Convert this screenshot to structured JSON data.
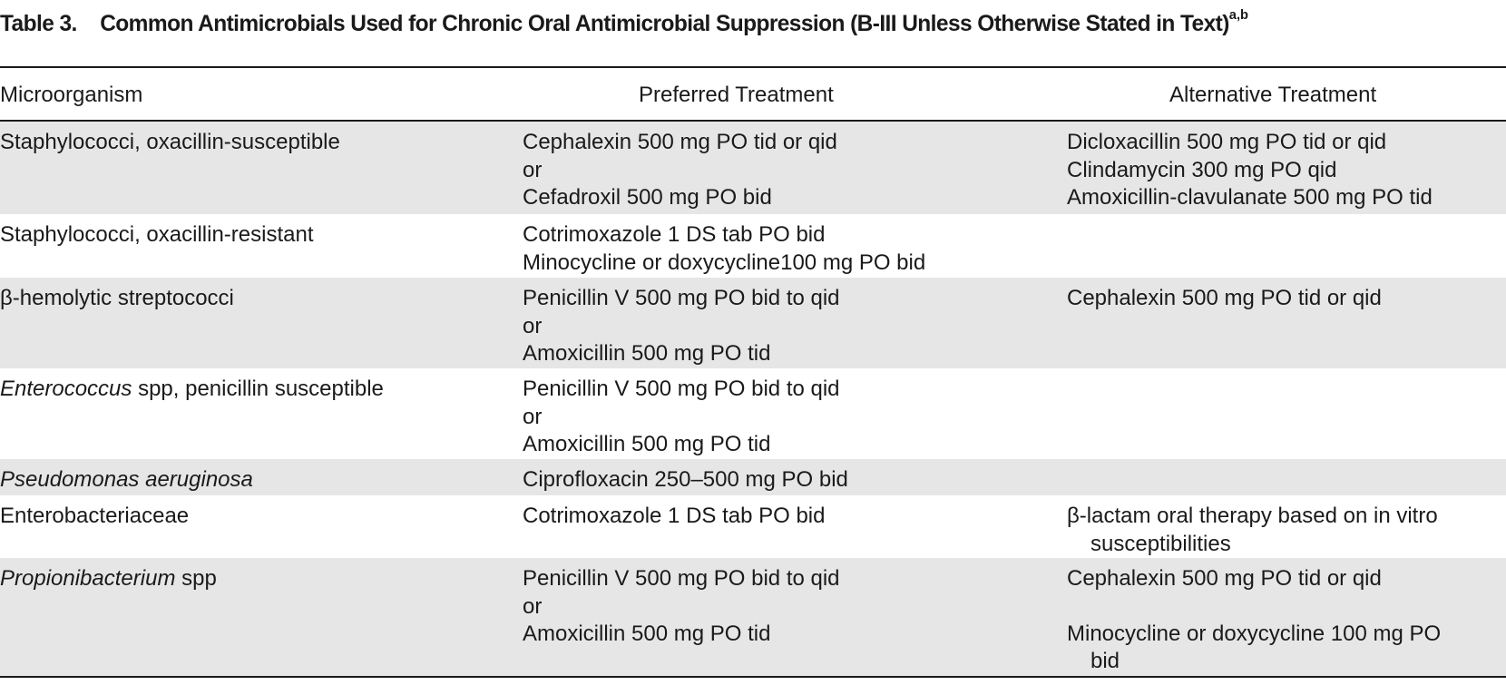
{
  "caption": {
    "number": "Table 3.",
    "title": "Common Antimicrobials Used for Chronic Oral Antimicrobial Suppression (B-III Unless Otherwise Stated in Text)",
    "footnote_marks": "a,b"
  },
  "columns": {
    "microorganism": "Microorganism",
    "preferred": "Preferred Treatment",
    "alternative": "Alternative Treatment"
  },
  "rows": [
    {
      "organism_italic": "",
      "organism_rest": "Staphylococci, oxacillin-susceptible",
      "preferred": [
        "Cephalexin 500 mg PO tid or qid",
        "or",
        "Cefadroxil 500 mg PO bid"
      ],
      "alternative": [
        "Dicloxacillin 500 mg PO tid or qid",
        "Clindamycin 300 mg PO qid",
        "Amoxicillin-clavulanate 500 mg PO tid"
      ]
    },
    {
      "organism_italic": "",
      "organism_rest": "Staphylococci, oxacillin-resistant",
      "preferred": [
        "Cotrimoxazole 1 DS tab PO bid",
        "Minocycline or doxycycline100 mg PO bid"
      ],
      "alternative": []
    },
    {
      "organism_italic": "",
      "organism_rest": "β-hemolytic streptococci",
      "preferred": [
        "Penicillin V 500 mg PO bid to qid",
        "or",
        "Amoxicillin 500 mg PO tid"
      ],
      "alternative": [
        "Cephalexin 500 mg PO tid or qid"
      ]
    },
    {
      "organism_italic": "Enterococcus",
      "organism_rest": " spp, penicillin susceptible",
      "preferred": [
        "Penicillin V 500 mg PO bid to qid",
        "or",
        "Amoxicillin 500 mg PO tid"
      ],
      "alternative": []
    },
    {
      "organism_italic": "Pseudomonas aeruginosa",
      "organism_rest": "",
      "preferred": [
        "Ciprofloxacin 250–500 mg PO bid"
      ],
      "alternative": []
    },
    {
      "organism_italic": "",
      "organism_rest": "Enterobacteriaceae",
      "preferred": [
        "Cotrimoxazole 1 DS tab PO bid"
      ],
      "alternative": [
        "β-lactam oral therapy based on in vitro",
        "susceptibilities"
      ]
    },
    {
      "organism_italic": "Propionibacterium",
      "organism_rest": " spp",
      "preferred": [
        "Penicillin V 500 mg PO bid to qid",
        "or",
        "Amoxicillin 500 mg PO tid"
      ],
      "alternative": [
        "Cephalexin 500 mg PO tid or qid",
        "",
        "Minocycline or doxycycline 100 mg PO",
        "bid"
      ]
    }
  ],
  "colors": {
    "shaded_row": "#e6e6e6",
    "rule": "#1a1a1a",
    "text": "#1a1a1a"
  }
}
